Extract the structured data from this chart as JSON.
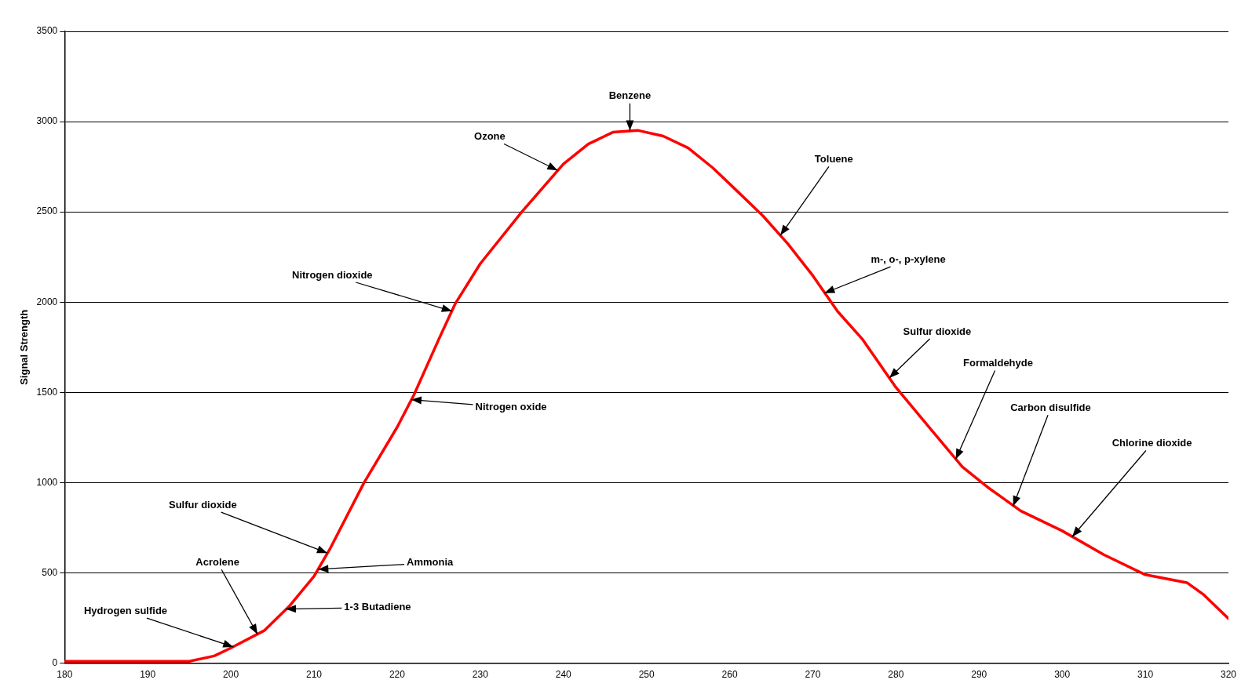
{
  "chart_data": {
    "type": "line",
    "ylabel": "Signal Strength",
    "x": [
      180,
      195,
      198,
      200,
      204,
      207,
      210,
      212,
      216,
      220,
      222,
      225,
      227,
      230,
      235,
      240,
      243,
      246,
      249,
      252,
      255,
      258,
      261,
      264,
      267,
      270,
      273,
      276,
      280,
      284,
      288,
      291,
      295,
      300,
      305,
      310,
      315,
      317,
      320
    ],
    "series": [
      {
        "color": "#ff0000",
        "values": [
          10,
          10,
          40,
          84,
          180,
          314,
          481,
          640,
          998,
          1307,
          1484,
          1793,
          1992,
          2213,
          2500,
          2765,
          2876,
          2942,
          2951,
          2920,
          2854,
          2743,
          2611,
          2478,
          2323,
          2147,
          1948,
          1793,
          1528,
          1307,
          1087,
          976,
          844,
          733,
          601,
          490,
          446,
          380,
          247
        ]
      }
    ],
    "xlim": [
      180,
      320
    ],
    "xticks": [
      180,
      190,
      200,
      210,
      220,
      230,
      240,
      250,
      260,
      270,
      280,
      290,
      300,
      310,
      320
    ],
    "ylim": [
      0,
      3500
    ],
    "yticks": [
      0,
      500,
      1000,
      1500,
      2000,
      2500,
      3000,
      3500
    ],
    "grid": "y",
    "legend": false,
    "marker": "none",
    "line_style": "solid",
    "annotations": [
      {
        "text": "Benzene",
        "x": 248,
        "y": 2950
      },
      {
        "text": "Ozone",
        "x": 239.3,
        "y": 2730
      },
      {
        "text": "Toluene",
        "x": 266.1,
        "y": 2370
      },
      {
        "text": "m-, o-, p-xylene",
        "x": 271.4,
        "y": 2050
      },
      {
        "text": "Sulfur dioxide",
        "x": 279.2,
        "y": 1580
      },
      {
        "text": "Formaldehyde",
        "x": 287.2,
        "y": 1130
      },
      {
        "text": "Carbon disulfide",
        "x": 294.1,
        "y": 870
      },
      {
        "text": "Chlorine dioxide",
        "x": 301.2,
        "y": 700
      },
      {
        "text": "Nitrogen dioxide",
        "x": 226.6,
        "y": 1950
      },
      {
        "text": "Nitrogen oxide",
        "x": 221.7,
        "y": 1460
      },
      {
        "text": "Sulfur dioxide",
        "x": 211.6,
        "y": 610
      },
      {
        "text": "Acrolene",
        "x": 203.2,
        "y": 160
      },
      {
        "text": "Ammonia",
        "x": 210.5,
        "y": 520
      },
      {
        "text": "Hydrogen sulfide",
        "x": 200.3,
        "y": 90
      },
      {
        "text": "1-3 Butadiene",
        "x": 206.6,
        "y": 300
      }
    ]
  }
}
